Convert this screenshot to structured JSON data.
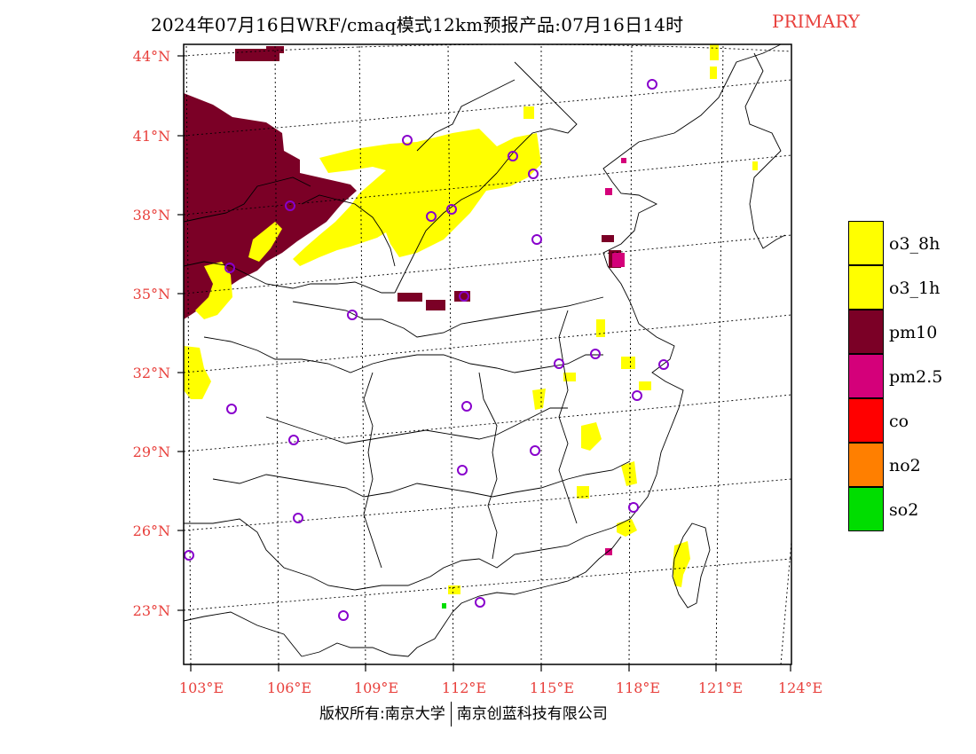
{
  "title": {
    "main": "2024年07月16日WRF/cmaq模式12km预报产品:07月16日14时",
    "tag": "PRIMARY"
  },
  "colors": {
    "axis_label": "#e8403c",
    "o3_8h": "#ffff00",
    "o3_1h": "#ffff00",
    "pm10": "#7b0026",
    "pm25": "#d4007a",
    "co": "#ff0000",
    "no2": "#ff7f00",
    "so2": "#00dd00",
    "station": "#8800cc"
  },
  "axes": {
    "lat_labels": [
      "44°N",
      "41°N",
      "38°N",
      "35°N",
      "32°N",
      "29°N",
      "26°N",
      "23°N"
    ],
    "lon_labels": [
      "103°E",
      "106°E",
      "109°E",
      "112°E",
      "115°E",
      "118°E",
      "121°E",
      "124°E"
    ]
  },
  "legend": [
    {
      "label": "o3_8h",
      "color": "#ffff00"
    },
    {
      "label": "o3_1h",
      "color": "#ffff00"
    },
    {
      "label": "pm10",
      "color": "#7b0026"
    },
    {
      "label": "pm2.5",
      "color": "#d4007a"
    },
    {
      "label": "co",
      "color": "#ff0000"
    },
    {
      "label": "no2",
      "color": "#ff7f00"
    },
    {
      "label": "so2",
      "color": "#00dd00"
    }
  ],
  "copyright": {
    "left": "版权所有:南京大学",
    "right": "南京创蓝科技有限公司"
  }
}
